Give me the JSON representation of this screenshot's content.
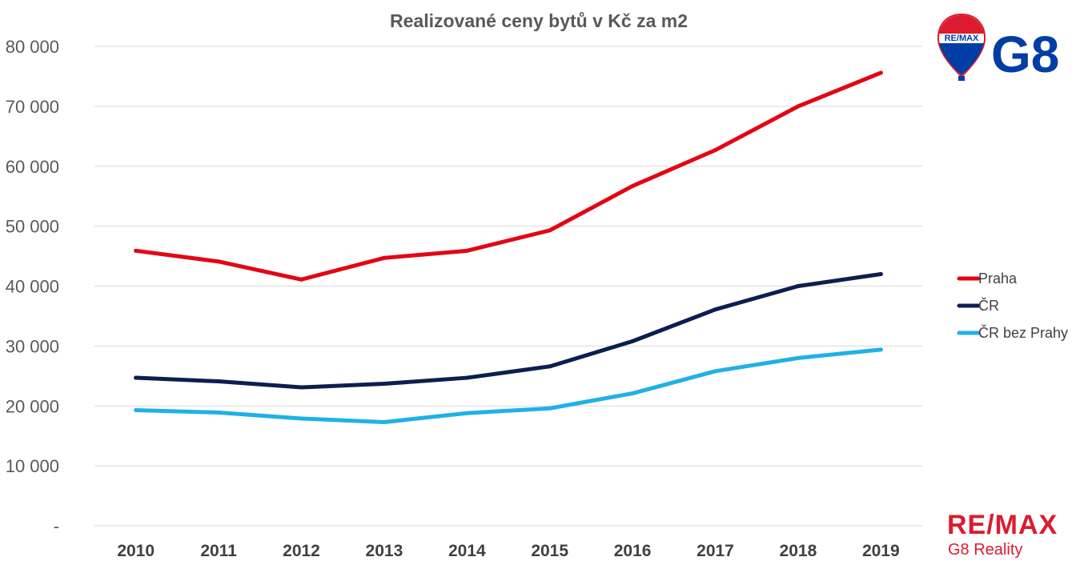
{
  "colors": {
    "praha": "#e30613",
    "cr": "#0b1f4f",
    "cr_bez_prahy": "#1fb1e6",
    "brand_red": "#dc1c2e",
    "brand_blue": "#003da5"
  },
  "logo": {
    "balloon_label": "RE/MAX",
    "office_label": "G8"
  },
  "footer_brand": {
    "name": "RE/MAX",
    "office": "G8 Reality"
  },
  "chart_data": {
    "type": "line",
    "title": "Realizované ceny bytů v Kč za m2",
    "xlabel": "",
    "ylabel": "",
    "categories": [
      "2010",
      "2011",
      "2012",
      "2013",
      "2014",
      "2015",
      "2016",
      "2017",
      "2018",
      "2019"
    ],
    "ylim": [
      0,
      80000
    ],
    "y_ticks": [
      0,
      10000,
      20000,
      30000,
      40000,
      50000,
      60000,
      70000,
      80000
    ],
    "y_tick_labels": [
      "-",
      "10 000",
      "20 000",
      "30 000",
      "40 000",
      "50 000",
      "60 000",
      "70 000",
      "80 000"
    ],
    "grid": true,
    "legend_position": "right",
    "series": [
      {
        "name": "Praha",
        "values": [
          45900,
          44100,
          41100,
          44700,
          45900,
          49300,
          56700,
          62700,
          70000,
          75600
        ]
      },
      {
        "name": "ČR",
        "values": [
          24700,
          24100,
          23100,
          23700,
          24700,
          26600,
          30800,
          36100,
          40000,
          42000
        ]
      },
      {
        "name": "ČR bez Prahy",
        "values": [
          19300,
          18900,
          17900,
          17300,
          18800,
          19600,
          22100,
          25800,
          28000,
          29400
        ]
      }
    ]
  }
}
